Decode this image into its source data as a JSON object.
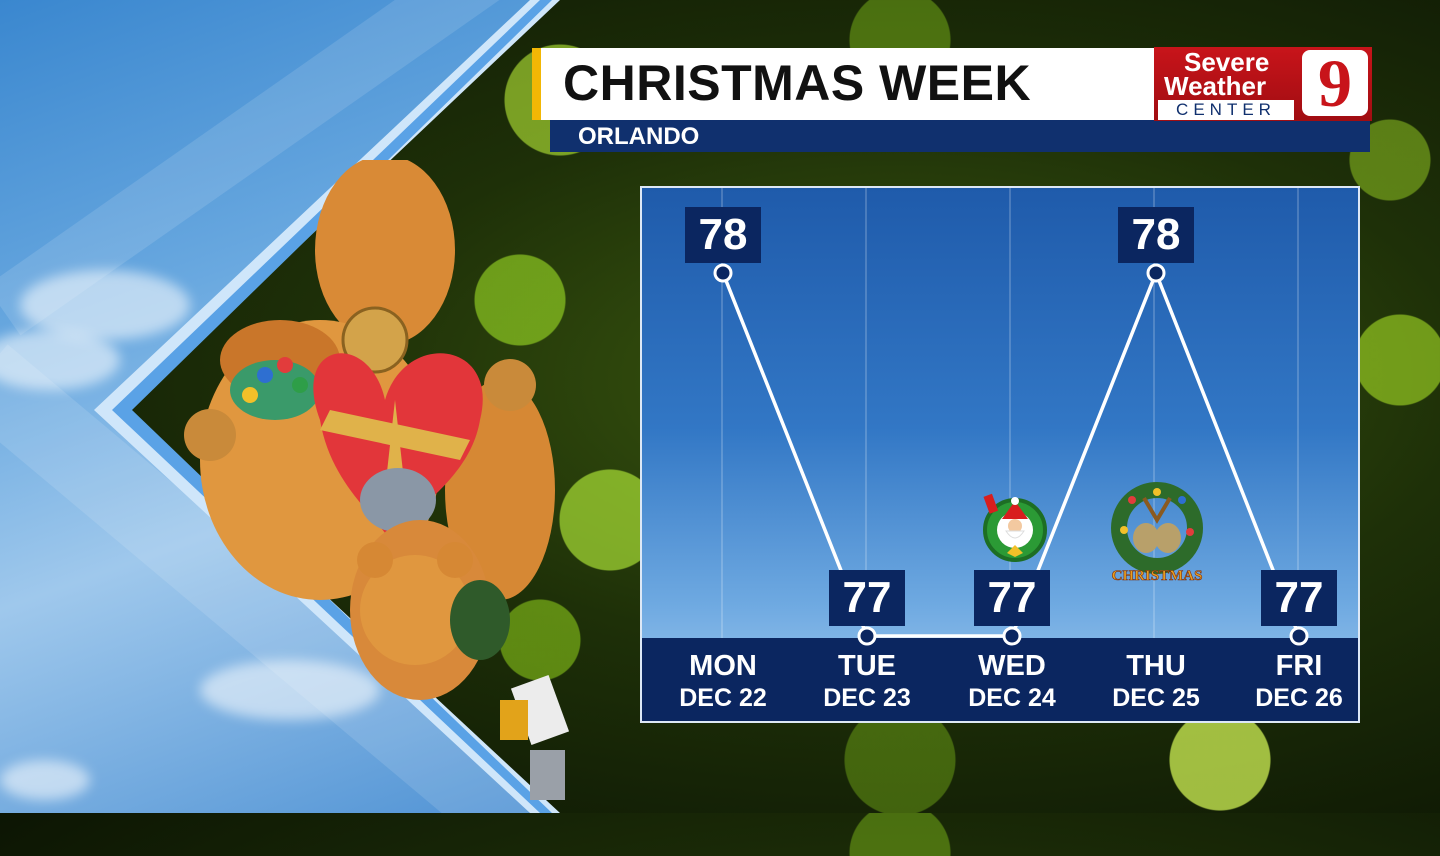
{
  "header": {
    "title": "CHRISTMAS WEEK",
    "location": "ORLANDO"
  },
  "logo": {
    "line1": "Severe",
    "line2": "Weather",
    "line3": "CENTER",
    "channel": "9"
  },
  "colors": {
    "accent": "#f2b705",
    "band": "#10306e",
    "logo_red": "#c8141a",
    "line": "#ffffff"
  },
  "chart_data": {
    "type": "line",
    "title": "CHRISTMAS WEEK",
    "categories": [
      "MON",
      "TUE",
      "WED",
      "THU",
      "FRI"
    ],
    "dates": [
      "DEC 22",
      "DEC 23",
      "DEC 24",
      "DEC 25",
      "DEC 26"
    ],
    "values": [
      78,
      77,
      77,
      78,
      77
    ],
    "ylim": [
      77,
      78
    ],
    "grid": true,
    "icons": [
      {
        "category": "WED",
        "icon": "santa-wreath-icon"
      },
      {
        "category": "THU",
        "icon": "christmas-bells-wreath-icon",
        "text": "CHRISTMAS"
      }
    ]
  }
}
